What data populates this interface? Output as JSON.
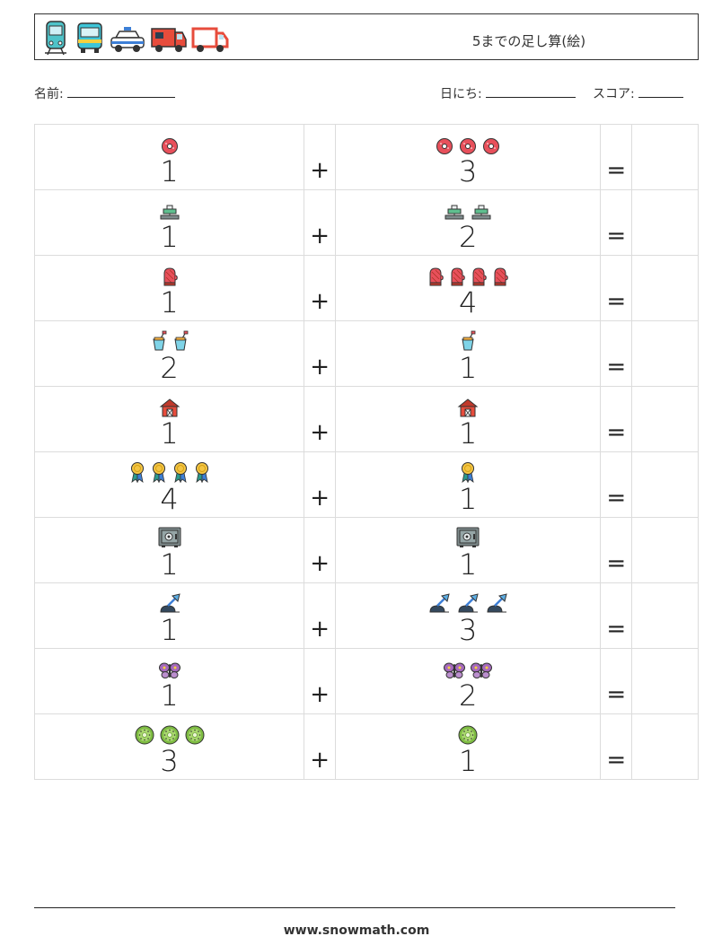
{
  "header": {
    "title": "5までの足し算(絵)",
    "icons": [
      "tram-icon",
      "bus-icon",
      "police-car-icon",
      "camper-van-icon",
      "truck-icon"
    ]
  },
  "fields": {
    "name_label": "名前:",
    "date_label": "日にち:",
    "score_label": "スコア:"
  },
  "operators": {
    "plus": "+",
    "equals": "="
  },
  "problems": [
    {
      "a": "1",
      "b": "3",
      "icon": "donut-icon"
    },
    {
      "a": "1",
      "b": "2",
      "icon": "stapler-icon"
    },
    {
      "a": "1",
      "b": "4",
      "icon": "oven-mitt-icon"
    },
    {
      "a": "2",
      "b": "1",
      "icon": "sand-bucket-icon"
    },
    {
      "a": "1",
      "b": "1",
      "icon": "barn-icon"
    },
    {
      "a": "4",
      "b": "1",
      "icon": "medal-icon"
    },
    {
      "a": "1",
      "b": "1",
      "icon": "safe-icon"
    },
    {
      "a": "1",
      "b": "3",
      "icon": "desk-lamp-icon"
    },
    {
      "a": "1",
      "b": "2",
      "icon": "butterfly-icon"
    },
    {
      "a": "3",
      "b": "1",
      "icon": "kiwi-icon"
    }
  ],
  "footer": {
    "url": "www.snowmath.com"
  }
}
